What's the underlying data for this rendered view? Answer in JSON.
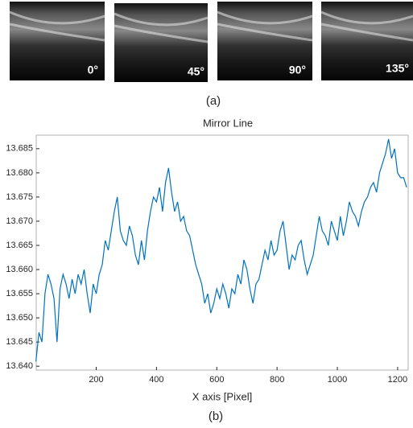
{
  "figure": {
    "angles": [
      "0°",
      "45°",
      "90°",
      "135°"
    ],
    "panel_a": "(a)",
    "panel_b": "(b)"
  },
  "chart_data": {
    "type": "line",
    "title": "Mirror Line",
    "x_label": "X axis [Pixel]",
    "x": [
      0,
      10,
      20,
      30,
      40,
      50,
      60,
      70,
      80,
      90,
      100,
      110,
      120,
      130,
      140,
      150,
      160,
      170,
      180,
      190,
      200,
      210,
      220,
      230,
      240,
      250,
      260,
      270,
      280,
      290,
      300,
      310,
      320,
      330,
      340,
      350,
      360,
      370,
      380,
      390,
      400,
      410,
      420,
      430,
      440,
      450,
      460,
      470,
      480,
      490,
      500,
      510,
      520,
      530,
      540,
      550,
      560,
      570,
      580,
      590,
      600,
      610,
      620,
      630,
      640,
      650,
      660,
      670,
      680,
      690,
      700,
      710,
      720,
      730,
      740,
      750,
      760,
      770,
      780,
      790,
      800,
      810,
      820,
      830,
      840,
      850,
      860,
      870,
      880,
      890,
      900,
      910,
      920,
      930,
      940,
      950,
      960,
      970,
      980,
      990,
      1000,
      1010,
      1020,
      1030,
      1040,
      1050,
      1060,
      1070,
      1080,
      1090,
      1100,
      1110,
      1120,
      1130,
      1140,
      1150,
      1160,
      1170,
      1180,
      1190,
      1200,
      1210,
      1220,
      1230
    ],
    "series": [
      {
        "color": "#0072bd",
        "values": [
          13.641,
          13.647,
          13.645,
          13.655,
          13.659,
          13.657,
          13.654,
          13.645,
          13.656,
          13.659,
          13.657,
          13.654,
          13.658,
          13.655,
          13.659,
          13.657,
          13.66,
          13.655,
          13.651,
          13.657,
          13.655,
          13.659,
          13.661,
          13.666,
          13.664,
          13.668,
          13.672,
          13.675,
          13.668,
          13.666,
          13.665,
          13.669,
          13.667,
          13.663,
          13.661,
          13.666,
          13.662,
          13.668,
          13.672,
          13.675,
          13.674,
          13.677,
          13.672,
          13.678,
          13.681,
          13.676,
          13.672,
          13.674,
          13.67,
          13.671,
          13.668,
          13.667,
          13.664,
          13.661,
          13.659,
          13.657,
          13.653,
          13.655,
          13.651,
          13.653,
          13.656,
          13.654,
          13.657,
          13.655,
          13.652,
          13.656,
          13.655,
          13.659,
          13.657,
          13.662,
          13.66,
          13.656,
          13.653,
          13.657,
          13.658,
          13.661,
          13.664,
          13.662,
          13.666,
          13.663,
          13.664,
          13.668,
          13.67,
          13.665,
          13.66,
          13.663,
          13.662,
          13.665,
          13.666,
          13.662,
          13.659,
          13.661,
          13.663,
          13.667,
          13.671,
          13.668,
          13.667,
          13.665,
          13.67,
          13.668,
          13.666,
          13.671,
          13.667,
          13.67,
          13.674,
          13.672,
          13.671,
          13.669,
          13.672,
          13.674,
          13.675,
          13.677,
          13.678,
          13.676,
          13.68,
          13.682,
          13.684,
          13.687,
          13.683,
          13.685,
          13.68,
          13.679,
          13.679,
          13.677
        ]
      }
    ],
    "xlim": [
      1,
      1235
    ],
    "xticks": [
      200,
      400,
      600,
      800,
      1000,
      1200
    ],
    "ylim": [
      13.6392,
      13.6878
    ],
    "yticks": [
      {
        "value": 13.64,
        "label": "13.640"
      },
      13.645,
      {
        "value": 13.65,
        "label": "13.650"
      },
      13.655,
      {
        "value": 13.66,
        "label": "13.660"
      },
      13.665,
      {
        "value": 13.67,
        "label": "13.670"
      },
      13.675,
      {
        "value": 13.68,
        "label": "13.680"
      },
      13.685
    ]
  }
}
